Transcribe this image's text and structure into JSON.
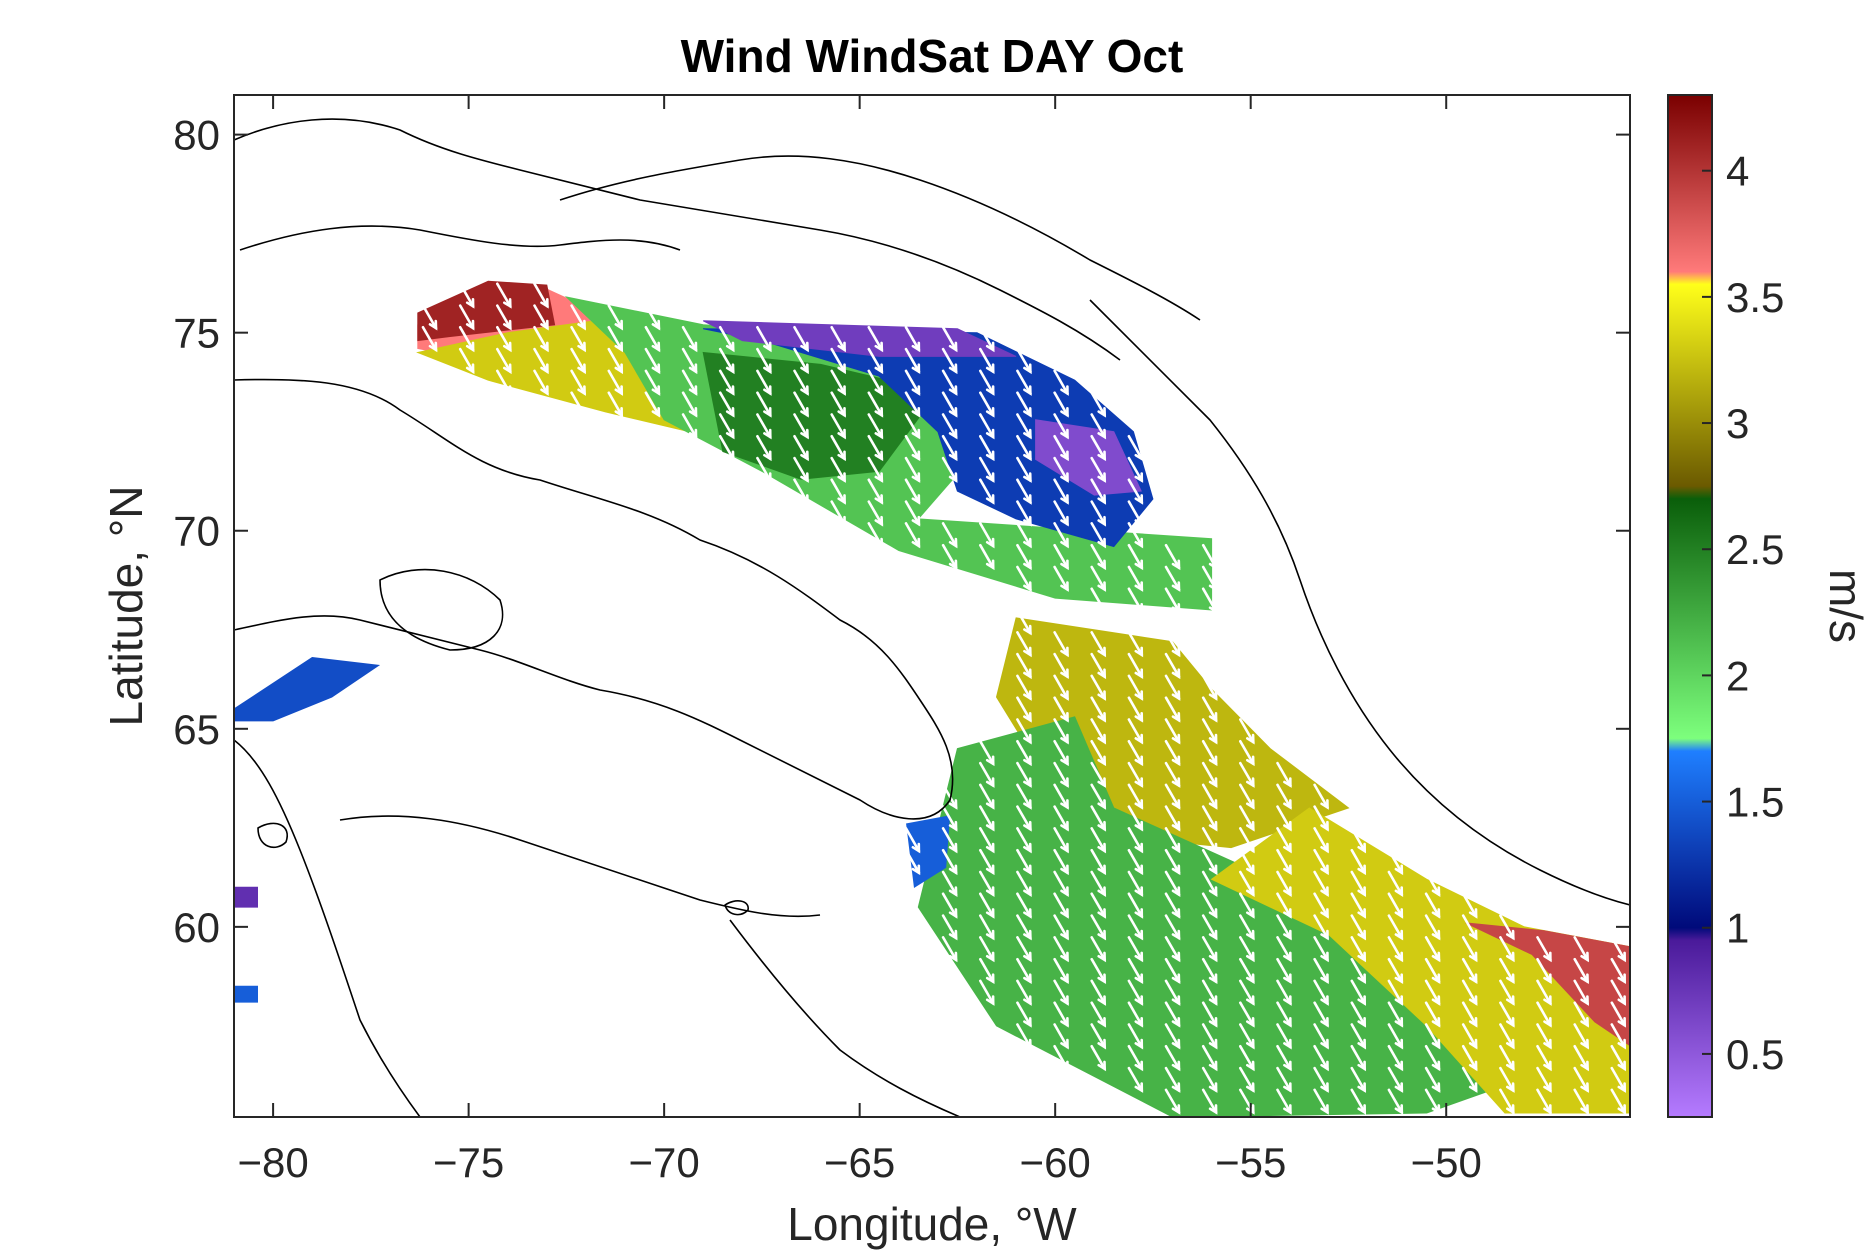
{
  "chart_data": {
    "type": "heatmap",
    "title": "Wind WindSat DAY Oct",
    "xlabel": "Longitude, °W",
    "ylabel": "Latitude, °N",
    "xlim": [
      -81,
      -45.3
    ],
    "ylim": [
      55.2,
      81
    ],
    "xticks": [
      -80,
      -75,
      -70,
      -65,
      -60,
      -55,
      -50
    ],
    "yticks": [
      60,
      65,
      70,
      75,
      80
    ],
    "grid": false,
    "colorbar": {
      "label": "m/s",
      "range": [
        0.25,
        4.3
      ],
      "ticks": [
        0.5,
        1,
        1.5,
        2,
        2.5,
        3,
        3.5,
        4
      ],
      "stops": [
        {
          "value": 0.25,
          "color": "#b57bff"
        },
        {
          "value": 0.95,
          "color": "#4a1a9a"
        },
        {
          "value": 1.0,
          "color": "#000a7a"
        },
        {
          "value": 1.7,
          "color": "#1f7fff"
        },
        {
          "value": 1.75,
          "color": "#7dff7d"
        },
        {
          "value": 2.7,
          "color": "#0a5e0a"
        },
        {
          "value": 2.75,
          "color": "#6b5a00"
        },
        {
          "value": 3.55,
          "color": "#ffff1a"
        },
        {
          "value": 3.6,
          "color": "#ff7a7a"
        },
        {
          "value": 4.3,
          "color": "#7a0000"
        }
      ]
    },
    "regions": [
      {
        "name": "baffin-north-edge",
        "polygon": [
          [
            -76.3,
            75.2
          ],
          [
            -76.3,
            74.6
          ],
          [
            -70.0,
            73.4
          ],
          [
            -69.0,
            74.3
          ],
          [
            -73.0,
            76.1
          ],
          [
            -75.5,
            75.8
          ]
        ],
        "value": 3.6
      },
      {
        "name": "baffin-northwest-red",
        "polygon": [
          [
            -76.3,
            74.8
          ],
          [
            -76.3,
            75.5
          ],
          [
            -74.5,
            76.3
          ],
          [
            -73.0,
            76.2
          ],
          [
            -72.8,
            75.2
          ],
          [
            -75.5,
            74.9
          ]
        ],
        "value": 4.1
      },
      {
        "name": "baffin-north-yellow",
        "polygon": [
          [
            -76.3,
            74.5
          ],
          [
            -74.0,
            75.0
          ],
          [
            -71.0,
            75.4
          ],
          [
            -69.0,
            75.0
          ],
          [
            -68.5,
            74.0
          ],
          [
            -68.5,
            72.3
          ],
          [
            -71.5,
            73.0
          ],
          [
            -74.5,
            73.8
          ]
        ],
        "value": 3.3
      },
      {
        "name": "baffin-green-band",
        "polygon": [
          [
            -72.5,
            75.9
          ],
          [
            -69.0,
            75.2
          ],
          [
            -63.0,
            74.8
          ],
          [
            -60.5,
            73.5
          ],
          [
            -62.0,
            72.0
          ],
          [
            -63.5,
            70.3
          ],
          [
            -56.0,
            69.8
          ],
          [
            -56.0,
            68.0
          ],
          [
            -60.0,
            68.3
          ],
          [
            -64.0,
            69.5
          ],
          [
            -67.5,
            71.5
          ],
          [
            -70.0,
            72.8
          ],
          [
            -71.0,
            74.5
          ]
        ],
        "value": 2.1
      },
      {
        "name": "baffin-dark-green",
        "polygon": [
          [
            -69.0,
            74.5
          ],
          [
            -66.0,
            74.2
          ],
          [
            -63.0,
            73.5
          ],
          [
            -64.5,
            71.5
          ],
          [
            -66.5,
            71.3
          ],
          [
            -68.5,
            72.0
          ]
        ],
        "value": 2.5
      },
      {
        "name": "baffin-blue-core",
        "polygon": [
          [
            -69.0,
            75.1
          ],
          [
            -62.0,
            75.0
          ],
          [
            -59.5,
            73.8
          ],
          [
            -58.0,
            72.5
          ],
          [
            -57.5,
            70.8
          ],
          [
            -58.5,
            69.6
          ],
          [
            -61.0,
            70.3
          ],
          [
            -62.5,
            71.0
          ],
          [
            -63.0,
            72.5
          ],
          [
            -64.5,
            73.9
          ],
          [
            -67.5,
            74.8
          ]
        ],
        "value": 1.3
      },
      {
        "name": "baffin-purple-top",
        "polygon": [
          [
            -69.0,
            75.3
          ],
          [
            -62.5,
            75.1
          ],
          [
            -61.0,
            74.4
          ],
          [
            -64.5,
            74.4
          ],
          [
            -68.0,
            74.8
          ]
        ],
        "value": 0.7
      },
      {
        "name": "baffin-purple-east",
        "polygon": [
          [
            -60.5,
            72.8
          ],
          [
            -58.5,
            72.5
          ],
          [
            -57.8,
            71.0
          ],
          [
            -59.0,
            70.9
          ],
          [
            -60.5,
            71.8
          ]
        ],
        "value": 0.6
      },
      {
        "name": "davis-strait-yellow",
        "polygon": [
          [
            -61.0,
            67.8
          ],
          [
            -57.0,
            67.2
          ],
          [
            -56.0,
            66.0
          ],
          [
            -54.5,
            64.5
          ],
          [
            -52.5,
            63.0
          ],
          [
            -55.5,
            62.0
          ],
          [
            -58.5,
            62.3
          ],
          [
            -60.5,
            64.2
          ],
          [
            -61.5,
            65.8
          ]
        ],
        "value": 3.2
      },
      {
        "name": "labrador-green",
        "polygon": [
          [
            -62.5,
            64.5
          ],
          [
            -59.5,
            65.3
          ],
          [
            -58.5,
            63.0
          ],
          [
            -54.0,
            61.0
          ],
          [
            -50.0,
            59.8
          ],
          [
            -47.0,
            58.8
          ],
          [
            -46.5,
            56.7
          ],
          [
            -50.5,
            55.3
          ],
          [
            -57.0,
            55.2
          ],
          [
            -61.5,
            57.5
          ],
          [
            -63.5,
            60.5
          ],
          [
            -63.0,
            62.5
          ]
        ],
        "value": 2.2
      },
      {
        "name": "labrador-yellow-east",
        "polygon": [
          [
            -53.5,
            63.0
          ],
          [
            -50.5,
            61.2
          ],
          [
            -48.0,
            60.0
          ],
          [
            -45.3,
            59.5
          ],
          [
            -45.3,
            55.3
          ],
          [
            -48.5,
            55.3
          ],
          [
            -50.5,
            57.5
          ],
          [
            -53.0,
            59.8
          ],
          [
            -56.0,
            61.2
          ]
        ],
        "value": 3.3
      },
      {
        "name": "labrador-red-edge",
        "polygon": [
          [
            -49.5,
            60.1
          ],
          [
            -47.5,
            59.9
          ],
          [
            -45.3,
            59.5
          ],
          [
            -45.3,
            57.0
          ],
          [
            -46.2,
            57.6
          ],
          [
            -47.8,
            59.3
          ]
        ],
        "value": 3.9
      },
      {
        "name": "labrador-blue-west",
        "polygon": [
          [
            -63.8,
            62.6
          ],
          [
            -62.7,
            62.8
          ],
          [
            -62.8,
            61.5
          ],
          [
            -63.6,
            61.0
          ]
        ],
        "value": 1.5
      },
      {
        "name": "hudson-blue-patch",
        "polygon": [
          [
            -81.0,
            65.5
          ],
          [
            -79.0,
            66.8
          ],
          [
            -77.3,
            66.6
          ],
          [
            -78.5,
            65.8
          ],
          [
            -80.0,
            65.2
          ],
          [
            -81.0,
            65.2
          ]
        ],
        "value": 1.4
      },
      {
        "name": "hudson-purple-patch",
        "polygon": [
          [
            -81.0,
            61.0
          ],
          [
            -80.4,
            61.0
          ],
          [
            -80.4,
            60.5
          ],
          [
            -81.0,
            60.5
          ]
        ],
        "value": 0.8
      },
      {
        "name": "hudson-blue-dot",
        "polygon": [
          [
            -81.0,
            58.5
          ],
          [
            -80.4,
            58.5
          ],
          [
            -80.4,
            58.1
          ],
          [
            -81.0,
            58.1
          ]
        ],
        "value": 1.5
      }
    ]
  }
}
